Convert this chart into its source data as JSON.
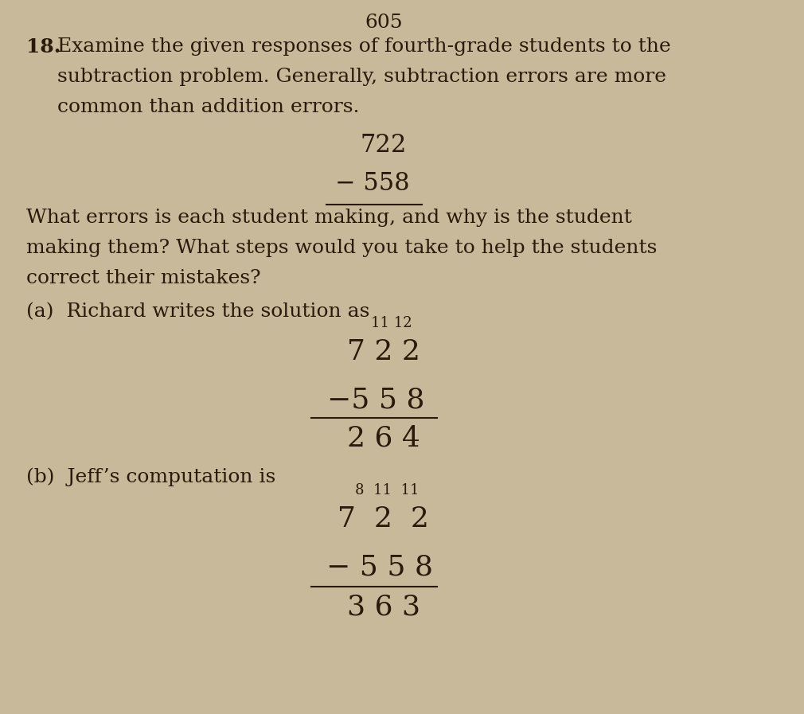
{
  "background_color": "#c8b99a",
  "text_color": "#2a1a0a",
  "page_number": "605",
  "problem_number": "18.",
  "intro_text_lines": [
    "Examine the given responses of fourth-grade students to the",
    "subtraction problem. Generally, subtraction errors are more",
    "common than addition errors."
  ],
  "problem_minuend": "722",
  "problem_subtrahend": "− 558",
  "question_text_lines": [
    "What errors is each student making, and why is the student",
    "making them? What steps would you take to help the students",
    "correct their mistakes?"
  ],
  "part_a_label": "(a)  Richard writes the solution as",
  "richard_superscript": "11 12",
  "richard_main": "7 2 2",
  "richard_subtrahend": "−5 5 8",
  "richard_result": "2 6 4",
  "part_b_label": "(b)  Jeff’s computation is",
  "jeff_superscript": "8  11  11",
  "jeff_main": "7  2  2",
  "jeff_subtrahend": "− 5 5 8",
  "jeff_result": "3 6 3",
  "main_fontsize": 18,
  "problem_fontsize": 22,
  "math_fontsize": 26,
  "super_fontsize": 13
}
